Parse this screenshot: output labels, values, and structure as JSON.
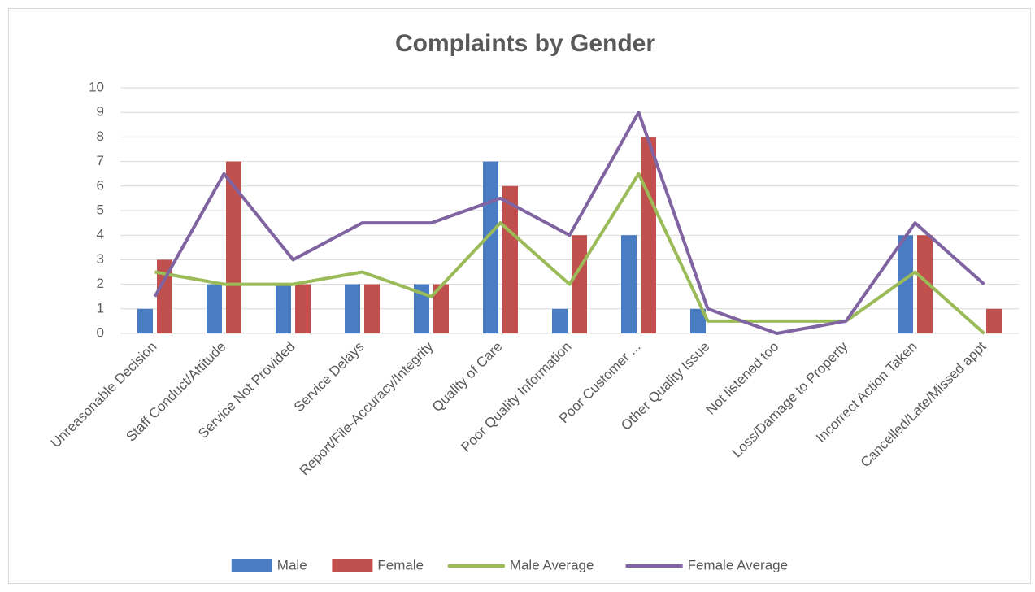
{
  "chart_data": {
    "type": "bar",
    "title": "Complaints by Gender",
    "categories": [
      "Unreasonable Decision",
      "Staff Conduct/Attitude",
      "Service Not Provided",
      "Service Delays",
      "Report/File-Accuracy/Integrity",
      "Quality of Care",
      "Poor Quality Information",
      "Poor Customer ...",
      "Other Quality Issue",
      "Not listened too",
      "Loss/Damage to Property",
      "Incorrect Action Taken",
      "Cancelled/Late/Missed appt"
    ],
    "series": [
      {
        "name": "Male",
        "type": "bar",
        "color": "#4a7cc4",
        "values": [
          1,
          2,
          2,
          2,
          2,
          7,
          1,
          4,
          1,
          0,
          0,
          4,
          0
        ]
      },
      {
        "name": "Female",
        "type": "bar",
        "color": "#c0504d",
        "values": [
          3,
          7,
          2,
          2,
          2,
          6,
          4,
          8,
          0,
          0,
          0,
          4,
          1
        ]
      },
      {
        "name": "Male Average",
        "type": "line",
        "color": "#9bbb59",
        "values": [
          2.5,
          2,
          2,
          2.5,
          1.5,
          4.5,
          2,
          6.5,
          0.5,
          0.5,
          0.5,
          2.5,
          0
        ]
      },
      {
        "name": "Female Average",
        "type": "line",
        "color": "#8064a2",
        "values": [
          1.5,
          6.5,
          3,
          4.5,
          4.5,
          5.5,
          4,
          9,
          1,
          0,
          0.5,
          4.5,
          2
        ]
      }
    ],
    "ylim": [
      0,
      10
    ],
    "yticks": [
      0,
      1,
      2,
      3,
      4,
      5,
      6,
      7,
      8,
      9,
      10
    ],
    "grid": true,
    "legend": "bottom"
  }
}
